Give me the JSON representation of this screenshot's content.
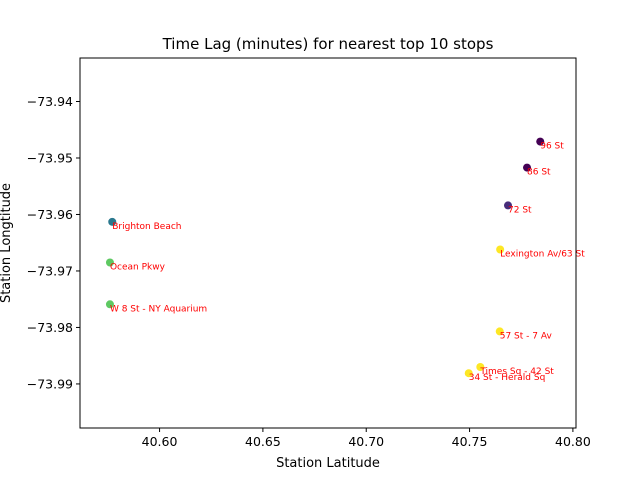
{
  "chart_data": {
    "type": "scatter",
    "title": "Time Lag (minutes) for nearest top 10 stops",
    "xlabel": "Station Latitude",
    "ylabel": "Station Longtitude",
    "xlim": [
      40.5615,
      40.8015
    ],
    "ylim": [
      -73.9978,
      -73.9323
    ],
    "xticks": [
      40.6,
      40.65,
      40.7,
      40.75,
      40.8
    ],
    "xtick_labels": [
      "40.60",
      "40.65",
      "40.70",
      "40.75",
      "40.80"
    ],
    "yticks": [
      -73.94,
      -73.95,
      -73.96,
      -73.97,
      -73.98,
      -73.99
    ],
    "ytick_labels": [
      "−73.94",
      "−73.95",
      "−73.96",
      "−73.97",
      "−73.98",
      "−73.99"
    ],
    "grid": false,
    "colormap": "viridis",
    "annotation_color": "#ff0000",
    "points": [
      {
        "label": "96 St",
        "x": 40.7842,
        "y": -73.9471,
        "color": "#440154"
      },
      {
        "label": "86 St",
        "x": 40.7778,
        "y": -73.9517,
        "color": "#440154"
      },
      {
        "label": "72 St",
        "x": 40.7686,
        "y": -73.9584,
        "color": "#472c7a"
      },
      {
        "label": "Brighton Beach",
        "x": 40.5771,
        "y": -73.9613,
        "color": "#2a788e"
      },
      {
        "label": "Lexington Av/63 St",
        "x": 40.7648,
        "y": -73.9662,
        "color": "#fde725"
      },
      {
        "label": "Ocean Pkwy",
        "x": 40.576,
        "y": -73.9685,
        "color": "#5ec962"
      },
      {
        "label": "W 8 St - NY Aquarium",
        "x": 40.576,
        "y": -73.9759,
        "color": "#5ec962"
      },
      {
        "label": "57 St - 7 Av",
        "x": 40.7646,
        "y": -73.9807,
        "color": "#fde725"
      },
      {
        "label": "Times Sq - 42 St",
        "x": 40.7552,
        "y": -73.987,
        "color": "#fde725"
      },
      {
        "label": "34 St - Herald Sq",
        "x": 40.7496,
        "y": -73.9881,
        "color": "#fde725"
      }
    ]
  }
}
